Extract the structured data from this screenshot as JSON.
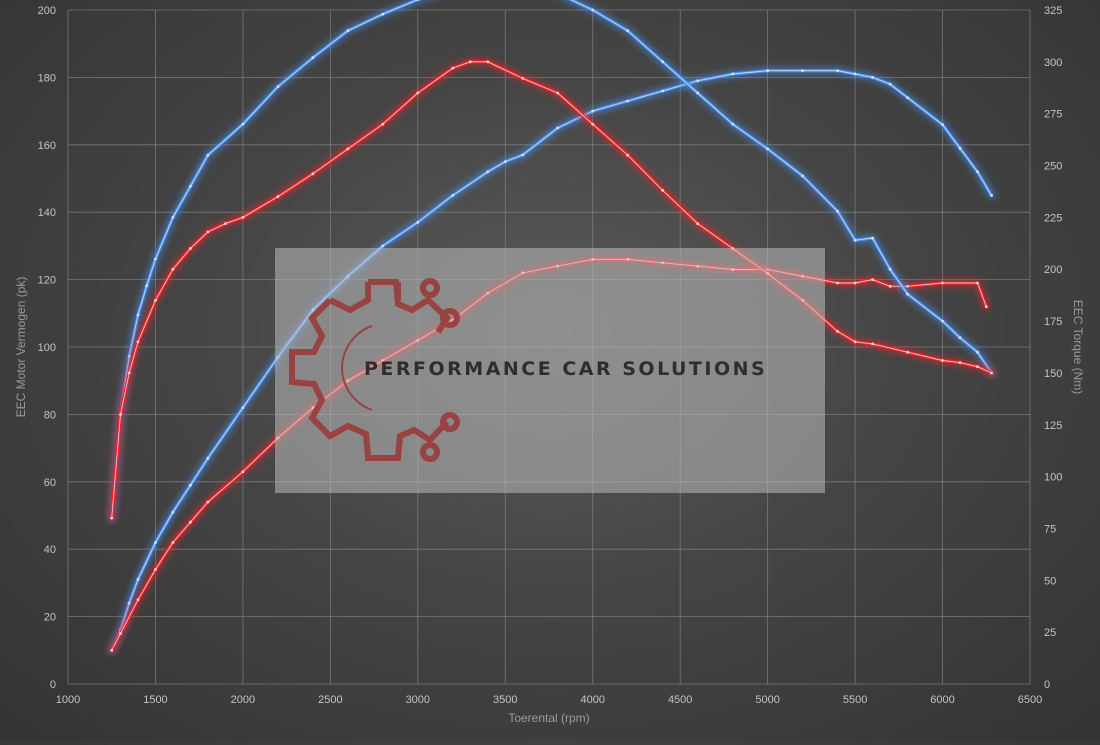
{
  "chart_data": {
    "type": "line",
    "xlabel": "Toerental (rpm)",
    "ylabel": "EEC Motor Vermogen (pk)",
    "y2label": "EEC Torque (Nm)",
    "xlim": [
      1000,
      6500
    ],
    "ylim": [
      0,
      200
    ],
    "y2lim": [
      0,
      325
    ],
    "x_ticks": [
      "1000",
      "1500",
      "2000",
      "2500",
      "3000",
      "3500",
      "4000",
      "4500",
      "5000",
      "5500",
      "6000",
      "6500"
    ],
    "y_ticks": [
      "0",
      "20",
      "40",
      "60",
      "80",
      "100",
      "120",
      "140",
      "160",
      "180",
      "200"
    ],
    "y2_ticks": [
      "0",
      "25",
      "50",
      "75",
      "100",
      "125",
      "150",
      "175",
      "200",
      "225",
      "250",
      "275",
      "300",
      "325"
    ],
    "grid": true,
    "colors": {
      "tuned": "#4a8ee8",
      "stock": "#e8252b",
      "tuned_core": "#cfe0ff",
      "stock_core": "#ffd0d0"
    },
    "series": [
      {
        "axis": "left",
        "variant": "tuned",
        "x": [
          1250,
          1300,
          1350,
          1400,
          1500,
          1600,
          1700,
          1800,
          2000,
          2200,
          2400,
          2600,
          2800,
          3000,
          3200,
          3400,
          3500,
          3600,
          3800,
          4000,
          4200,
          4400,
          4600,
          4800,
          5000,
          5200,
          5400,
          5500,
          5600,
          5700,
          5800,
          6000,
          6100,
          6200,
          6280
        ],
        "y": [
          10,
          16,
          24,
          31,
          42,
          51,
          59,
          67,
          82,
          97,
          111,
          121,
          130,
          137,
          145,
          152,
          155,
          157,
          165,
          170,
          173,
          176,
          179,
          181,
          182,
          182,
          182,
          181,
          180,
          178,
          174,
          166,
          159,
          152,
          145
        ]
      },
      {
        "axis": "left",
        "variant": "stock",
        "x": [
          1250,
          1300,
          1400,
          1500,
          1600,
          1700,
          1800,
          2000,
          2200,
          2400,
          2600,
          2800,
          3000,
          3200,
          3400,
          3600,
          3800,
          4000,
          4200,
          4400,
          4600,
          4800,
          5000,
          5200,
          5400,
          5500,
          5600,
          5700,
          5800,
          6000,
          6200,
          6250
        ],
        "y": [
          10,
          15,
          25,
          34,
          42,
          48,
          54,
          63,
          73,
          82,
          90,
          96,
          102,
          108,
          116,
          122,
          124,
          126,
          126,
          125,
          124,
          123,
          123,
          121,
          119,
          119,
          120,
          118,
          118,
          119,
          119,
          112
        ]
      },
      {
        "axis": "right",
        "variant": "tuned",
        "x": [
          1250,
          1300,
          1350,
          1400,
          1450,
          1500,
          1600,
          1700,
          1800,
          2000,
          2200,
          2400,
          2600,
          2800,
          3000,
          3200,
          3400,
          3500,
          3600,
          3800,
          4000,
          4200,
          4400,
          4600,
          4800,
          5000,
          5200,
          5400,
          5500,
          5600,
          5700,
          5800,
          6000,
          6100,
          6200,
          6280
        ],
        "y": [
          80,
          130,
          158,
          178,
          192,
          205,
          225,
          240,
          255,
          270,
          288,
          302,
          315,
          323,
          330,
          335,
          340,
          340,
          338,
          333,
          325,
          315,
          300,
          285,
          270,
          258,
          245,
          228,
          214,
          215,
          200,
          188,
          175,
          167,
          160,
          150
        ]
      },
      {
        "axis": "right",
        "variant": "stock",
        "x": [
          1250,
          1300,
          1350,
          1400,
          1500,
          1600,
          1700,
          1800,
          1900,
          2000,
          2200,
          2400,
          2600,
          2800,
          3000,
          3200,
          3300,
          3400,
          3600,
          3800,
          4000,
          4200,
          4400,
          4600,
          4800,
          5000,
          5200,
          5400,
          5500,
          5600,
          5800,
          6000,
          6100,
          6200,
          6280
        ],
        "y": [
          80,
          130,
          150,
          165,
          185,
          200,
          210,
          218,
          222,
          225,
          235,
          246,
          258,
          270,
          285,
          297,
          300,
          300,
          292,
          285,
          270,
          255,
          238,
          222,
          210,
          198,
          185,
          170,
          165,
          164,
          160,
          156,
          155,
          153,
          150
        ]
      }
    ]
  },
  "watermark": {
    "text": "PERFORMANCE CAR SOLUTIONS"
  }
}
